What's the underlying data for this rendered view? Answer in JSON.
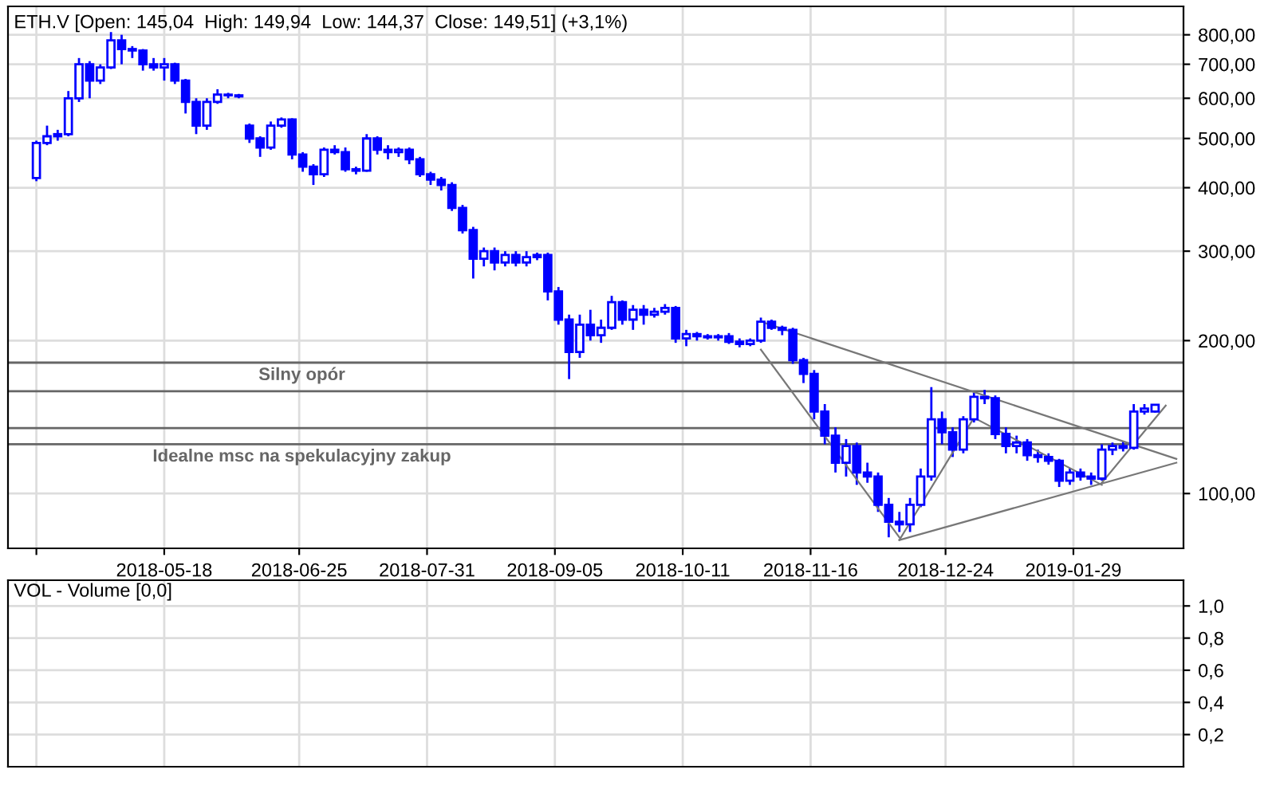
{
  "chart_data": [
    {
      "type": "candlestick",
      "title": "ETH.V [Open: 145,04  High: 149,94  Low: 144,37  Close: 149,51] (+3,1%)",
      "log": "y",
      "grid": true,
      "legend": false,
      "x": [
        "2018-04-12",
        "2018-04-15",
        "2018-04-18",
        "2018-04-21",
        "2018-04-24",
        "2018-04-27",
        "2018-04-30",
        "2018-05-03",
        "2018-05-06",
        "2018-05-09",
        "2018-05-12",
        "2018-05-15",
        "2018-05-18",
        "2018-05-21",
        "2018-05-24",
        "2018-05-27",
        "2018-05-30",
        "2018-06-02",
        "2018-06-05",
        "2018-06-08",
        "2018-06-11",
        "2018-06-14",
        "2018-06-17",
        "2018-06-20",
        "2018-06-23",
        "2018-06-26",
        "2018-06-29",
        "2018-07-02",
        "2018-07-05",
        "2018-07-08",
        "2018-07-11",
        "2018-07-14",
        "2018-07-17",
        "2018-07-20",
        "2018-07-23",
        "2018-07-26",
        "2018-07-29",
        "2018-08-01",
        "2018-08-04",
        "2018-08-07",
        "2018-08-10",
        "2018-08-13",
        "2018-08-16",
        "2018-08-19",
        "2018-08-22",
        "2018-08-25",
        "2018-08-28",
        "2018-08-31",
        "2018-09-03",
        "2018-09-06",
        "2018-09-09",
        "2018-09-12",
        "2018-09-15",
        "2018-09-18",
        "2018-09-21",
        "2018-09-24",
        "2018-09-27",
        "2018-09-30",
        "2018-10-03",
        "2018-10-06",
        "2018-10-09",
        "2018-10-12",
        "2018-10-15",
        "2018-10-18",
        "2018-10-21",
        "2018-10-24",
        "2018-10-27",
        "2018-10-30",
        "2018-11-02",
        "2018-11-05",
        "2018-11-08",
        "2018-11-11",
        "2018-11-14",
        "2018-11-17",
        "2018-11-20",
        "2018-11-23",
        "2018-11-26",
        "2018-11-29",
        "2018-12-02",
        "2018-12-05",
        "2018-12-08",
        "2018-12-11",
        "2018-12-14",
        "2018-12-17",
        "2018-12-20",
        "2018-12-23",
        "2018-12-26",
        "2018-12-29",
        "2019-01-01",
        "2019-01-04",
        "2019-01-07",
        "2019-01-10",
        "2019-01-13",
        "2019-01-16",
        "2019-01-19",
        "2019-01-22",
        "2019-01-25",
        "2019-01-28",
        "2019-01-31",
        "2019-02-03",
        "2019-02-06",
        "2019-02-09",
        "2019-02-12",
        "2019-02-15",
        "2019-02-18",
        "2019-02-21"
      ],
      "series": [
        {
          "color": "#0000ff",
          "ohlc": [
            [
              418,
              495,
              412,
              490
            ],
            [
              490,
              530,
              485,
              505
            ],
            [
              505,
              520,
              495,
              510
            ],
            [
              510,
              620,
              505,
              600
            ],
            [
              600,
              720,
              590,
              700
            ],
            [
              700,
              710,
              600,
              650
            ],
            [
              650,
              700,
              640,
              690
            ],
            [
              690,
              810,
              685,
              780
            ],
            [
              780,
              800,
              700,
              750
            ],
            [
              750,
              760,
              720,
              745
            ],
            [
              745,
              750,
              680,
              700
            ],
            [
              700,
              720,
              680,
              690
            ],
            [
              690,
              720,
              650,
              700
            ],
            [
              700,
              705,
              640,
              650
            ],
            [
              650,
              655,
              560,
              590
            ],
            [
              590,
              600,
              510,
              530
            ],
            [
              530,
              600,
              520,
              590
            ],
            [
              590,
              625,
              585,
              610
            ],
            [
              610,
              615,
              600,
              608
            ],
            [
              608,
              612,
              600,
              605
            ],
            [
              530,
              535,
              490,
              500
            ],
            [
              500,
              505,
              460,
              480
            ],
            [
              480,
              540,
              475,
              530
            ],
            [
              530,
              550,
              525,
              545
            ],
            [
              545,
              548,
              455,
              465
            ],
            [
              465,
              470,
              430,
              440
            ],
            [
              440,
              445,
              405,
              425
            ],
            [
              425,
              480,
              420,
              475
            ],
            [
              475,
              485,
              465,
              470
            ],
            [
              470,
              480,
              430,
              435
            ],
            [
              435,
              440,
              425,
              432
            ],
            [
              432,
              510,
              430,
              500
            ],
            [
              500,
              505,
              465,
              475
            ],
            [
              475,
              485,
              455,
              470
            ],
            [
              470,
              480,
              460,
              475
            ],
            [
              475,
              480,
              445,
              455
            ],
            [
              455,
              460,
              420,
              425
            ],
            [
              425,
              430,
              405,
              415
            ],
            [
              415,
              420,
              395,
              405
            ],
            [
              405,
              410,
              360,
              365
            ],
            [
              365,
              370,
              325,
              330
            ],
            [
              330,
              335,
              265,
              290
            ],
            [
              290,
              305,
              280,
              300
            ],
            [
              300,
              305,
              275,
              285
            ],
            [
              285,
              300,
              280,
              295
            ],
            [
              295,
              300,
              280,
              285
            ],
            [
              285,
              300,
              280,
              292
            ],
            [
              292,
              298,
              288,
              295
            ],
            [
              295,
              298,
              240,
              250
            ],
            [
              250,
              255,
              215,
              220
            ],
            [
              220,
              225,
              168,
              190
            ],
            [
              190,
              225,
              185,
              215
            ],
            [
              215,
              230,
              200,
              205
            ],
            [
              205,
              220,
              198,
              212
            ],
            [
              212,
              245,
              210,
              238
            ],
            [
              238,
              240,
              215,
              220
            ],
            [
              220,
              235,
              210,
              230
            ],
            [
              230,
              235,
              215,
              225
            ],
            [
              225,
              232,
              222,
              228
            ],
            [
              228,
              236,
              225,
              232
            ],
            [
              232,
              234,
              198,
              202
            ],
            [
              202,
              210,
              195,
              206
            ],
            [
              206,
              208,
              200,
              204
            ],
            [
              204,
              206,
              201,
              203
            ],
            [
              203,
              206,
              200,
              204
            ],
            [
              204,
              207,
              197,
              199
            ],
            [
              199,
              202,
              194,
              197
            ],
            [
              197,
              202,
              195,
              200
            ],
            [
              200,
              222,
              198,
              218
            ],
            [
              218,
              220,
              210,
              212
            ],
            [
              212,
              214,
              205,
              210
            ],
            [
              210,
              212,
              180,
              183
            ],
            [
              183,
              185,
              165,
              172
            ],
            [
              172,
              175,
              140,
              145
            ],
            [
              145,
              150,
              125,
              130
            ],
            [
              130,
              135,
              110,
              115
            ],
            [
              115,
              128,
              108,
              124
            ],
            [
              124,
              126,
              104,
              110
            ],
            [
              110,
              115,
              105,
              108
            ],
            [
              108,
              110,
              92,
              95
            ],
            [
              95,
              98,
              82,
              88
            ],
            [
              88,
              92,
              84,
              87
            ],
            [
              87,
              98,
              84,
              95
            ],
            [
              95,
              112,
              94,
              108
            ],
            [
              108,
              162,
              106,
              140
            ],
            [
              140,
              145,
              125,
              132
            ],
            [
              132,
              135,
              118,
              122
            ],
            [
              122,
              142,
              120,
              140
            ],
            [
              140,
              158,
              138,
              155
            ],
            [
              155,
              160,
              150,
              154
            ],
            [
              154,
              156,
              128,
              131
            ],
            [
              131,
              135,
              120,
              124
            ],
            [
              124,
              130,
              120,
              126
            ],
            [
              126,
              128,
              116,
              119
            ],
            [
              119,
              122,
              115,
              118
            ],
            [
              118,
              120,
              114,
              116
            ],
            [
              116,
              117,
              103,
              106
            ],
            [
              106,
              112,
              104,
              110
            ],
            [
              110,
              112,
              106,
              108
            ],
            [
              108,
              110,
              104,
              107
            ],
            [
              107,
              125,
              106,
              122
            ],
            [
              122,
              126,
              119,
              124
            ],
            [
              124,
              127,
              121,
              123
            ],
            [
              123,
              150,
              122,
              145
            ],
            [
              145,
              150,
              143,
              147
            ],
            [
              145.04,
              149.94,
              144.37,
              149.51
            ]
          ]
        },
        {
          "type": "line",
          "color": "#777777",
          "x": [
            "2018-11-02",
            "2019-02-27"
          ],
          "values": [
            218,
            117
          ]
        },
        {
          "type": "line",
          "color": "#777777",
          "x": [
            "2018-12-11",
            "2019-02-27"
          ],
          "values": [
            81,
            115
          ]
        },
        {
          "type": "line",
          "color": "#777777",
          "x": [
            "2018-11-02",
            "2018-12-11"
          ],
          "values": [
            192,
            82
          ]
        },
        {
          "type": "line",
          "color": "#777777",
          "x": [
            "2018-12-11",
            "2019-01-01"
          ],
          "values": [
            81,
            141
          ]
        },
        {
          "type": "line",
          "color": "#777777",
          "x": [
            "2019-01-01",
            "2019-02-06"
          ],
          "values": [
            141,
            104
          ]
        },
        {
          "type": "line",
          "color": "#777777",
          "x": [
            "2019-02-06",
            "2019-02-24"
          ],
          "values": [
            105,
            149
          ]
        }
      ],
      "ref_lines": [
        {
          "axis": "y",
          "value": 181,
          "label": "Silny opór",
          "color": "#666666"
        },
        {
          "axis": "y",
          "value": 159,
          "color": "#666666"
        },
        {
          "axis": "y",
          "value": 134.5,
          "color": "#666666"
        },
        {
          "axis": "y",
          "value": 125,
          "label": "Idealne msc na spekulacyjny zakup",
          "color": "#666666"
        }
      ],
      "xlim": [
        "2018-04-04",
        "2019-03-01"
      ],
      "xticks": [
        {
          "value": "2018-04-12",
          "label": null
        },
        {
          "value": "2018-05-18",
          "label": "2018-05-18"
        },
        {
          "value": "2018-06-25",
          "label": "2018-06-25"
        },
        {
          "value": "2018-07-31",
          "label": "2018-07-31"
        },
        {
          "value": "2018-09-05",
          "label": "2018-09-05"
        },
        {
          "value": "2018-10-11",
          "label": "2018-10-11"
        },
        {
          "value": "2018-11-16",
          "label": "2018-11-16"
        },
        {
          "value": "2018-12-24",
          "label": "2018-12-24"
        },
        {
          "value": "2019-01-29",
          "label": "2019-01-29"
        }
      ],
      "ylim": [
        78,
        910
      ],
      "yticks": [
        {
          "value": 100,
          "label": "100,00"
        },
        {
          "value": 200,
          "label": "200,00"
        },
        {
          "value": 300,
          "label": "300,00"
        },
        {
          "value": 400,
          "label": "400,00"
        },
        {
          "value": 500,
          "label": "500,00"
        },
        {
          "value": 600,
          "label": "600,00"
        },
        {
          "value": 700,
          "label": "700,00"
        },
        {
          "value": 800,
          "label": "800,00"
        }
      ]
    },
    {
      "type": "bar",
      "title": "VOL - Volume [0,0]",
      "grid": true,
      "tick_labels": "y",
      "xlim": [
        "2018-04-04",
        "2019-03-01"
      ],
      "xticks": [
        {
          "value": "2018-04-12",
          "label": null
        },
        {
          "value": "2018-05-18",
          "label": null
        },
        {
          "value": "2018-06-25",
          "label": null
        },
        {
          "value": "2018-07-31",
          "label": null
        },
        {
          "value": "2018-09-05",
          "label": null
        },
        {
          "value": "2018-10-11",
          "label": null
        },
        {
          "value": "2018-11-16",
          "label": null
        },
        {
          "value": "2018-12-24",
          "label": null
        },
        {
          "value": "2019-01-29",
          "label": null
        }
      ],
      "ylim": [
        0,
        1.16
      ],
      "yticks": [
        {
          "value": 0.2,
          "label": "0,2"
        },
        {
          "value": 0.4,
          "label": "0,4"
        },
        {
          "value": 0.6,
          "label": "0,6"
        },
        {
          "value": 0.8,
          "label": "0,8"
        },
        {
          "value": 1.0,
          "label": "1,0"
        }
      ]
    }
  ]
}
